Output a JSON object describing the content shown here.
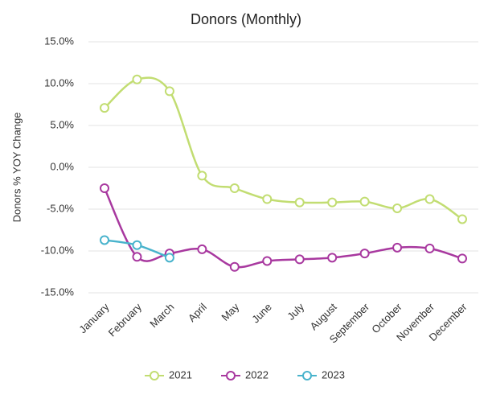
{
  "chart_data": {
    "type": "line",
    "title": "Donors (Monthly)",
    "y_label": "Donors % YOY Change",
    "categories": [
      "January",
      "February",
      "March",
      "April",
      "May",
      "June",
      "July",
      "August",
      "September",
      "October",
      "November",
      "December"
    ],
    "series": [
      {
        "name": "2021",
        "color": "#c2dd72",
        "values": [
          7.1,
          10.5,
          9.1,
          -1.0,
          -2.5,
          -3.8,
          -4.2,
          -4.2,
          -4.1,
          -4.9,
          -3.8,
          -6.2
        ]
      },
      {
        "name": "2022",
        "color": "#a8389f",
        "values": [
          -2.5,
          -10.7,
          -10.3,
          -9.8,
          -11.9,
          -11.2,
          -11.0,
          -10.8,
          -10.3,
          -9.6,
          -9.7,
          -10.9
        ]
      },
      {
        "name": "2023",
        "color": "#48b3cc",
        "values": [
          -8.7,
          -9.3,
          -10.8,
          null,
          null,
          null,
          null,
          null,
          null,
          null,
          null,
          null
        ]
      }
    ],
    "ylim": [
      -15,
      15
    ],
    "yticks": [
      {
        "value": -15,
        "label": "-15.0%"
      },
      {
        "value": -10,
        "label": "-10.0%"
      },
      {
        "value": -5,
        "label": "-5.0%"
      },
      {
        "value": 0,
        "label": "0.0%"
      },
      {
        "value": 5,
        "label": "5.0%"
      },
      {
        "value": 10,
        "label": "10.0%"
      },
      {
        "value": 15,
        "label": "15.0%"
      }
    ],
    "grid": true,
    "smooth": true,
    "legend": "bottom"
  }
}
